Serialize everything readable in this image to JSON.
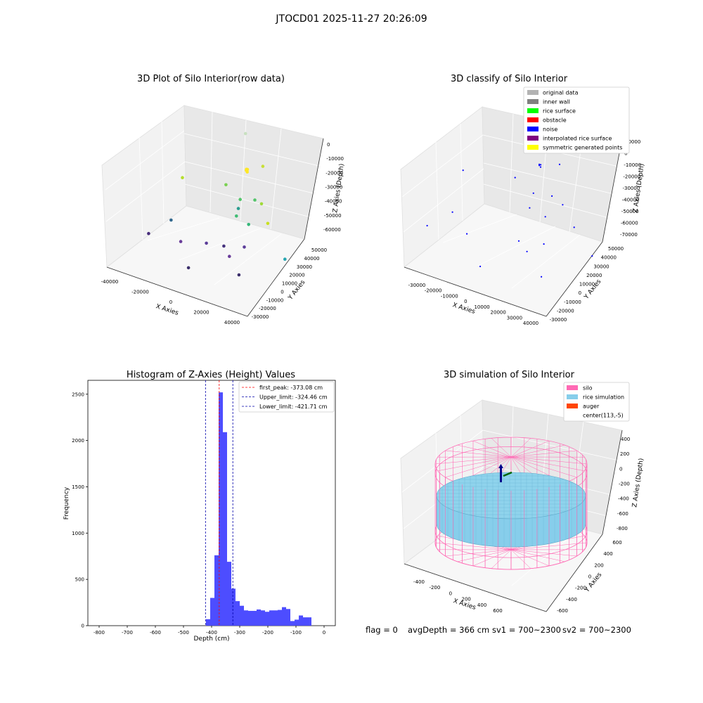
{
  "suptitle": "JTOCD01 2025-11-27 20:26:09",
  "chart_data": [
    {
      "type": "scatter",
      "title": "3D Plot of Silo Interior(row data)",
      "xlabel": "X Axies",
      "ylabel": "Y Axies",
      "zlabel": "Z Axies (Depth)",
      "xticks": [
        "-40000",
        "-20000",
        "0",
        "20000",
        "40000"
      ],
      "yticks": [
        "-30000",
        "-20000",
        "-10000",
        "0",
        "10000",
        "20000",
        "30000",
        "40000",
        "50000"
      ],
      "zticks": [
        "0",
        "-10000",
        "-20000",
        "-30000",
        "-40000",
        "-50000",
        "-60000"
      ],
      "points": [
        {
          "x": -5000,
          "y": 48000,
          "z": -1000,
          "color": "#c8e0c0"
        },
        {
          "x": 12000,
          "y": 40000,
          "z": -13000,
          "color": "#c8df37"
        },
        {
          "x": 2000,
          "y": 38000,
          "z": -18000,
          "color": "#fde725"
        },
        {
          "x": 2500,
          "y": 38500,
          "z": -17500,
          "color": "#fde725"
        },
        {
          "x": 3000,
          "y": 37500,
          "z": -18500,
          "color": "#fde725"
        },
        {
          "x": 1500,
          "y": 39000,
          "z": -18000,
          "color": "#fde725"
        },
        {
          "x": -30000,
          "y": 20000,
          "z": -25000,
          "color": "#b5de2b"
        },
        {
          "x": -8000,
          "y": 32000,
          "z": -28000,
          "color": "#7ad151"
        },
        {
          "x": 3000,
          "y": 30000,
          "z": -33000,
          "color": "#52c569"
        },
        {
          "x": 13000,
          "y": 30000,
          "z": -30000,
          "color": "#52c569"
        },
        {
          "x": 24000,
          "y": 20000,
          "z": -24000,
          "color": "#a0da39"
        },
        {
          "x": 38000,
          "y": 5000,
          "z": -25000,
          "color": "#c8e020"
        },
        {
          "x": 3000,
          "y": 26000,
          "z": -42000,
          "color": "#3fbc73"
        },
        {
          "x": 12000,
          "y": 25000,
          "z": -44000,
          "color": "#35b779"
        },
        {
          "x": 3000,
          "y": 28000,
          "z": -38000,
          "color": "#2a9d8f"
        },
        {
          "x": 40000,
          "y": 20000,
          "z": -55000,
          "color": "#26a5b0"
        },
        {
          "x": -28000,
          "y": 5000,
          "z": -45000,
          "color": "#31688e"
        },
        {
          "x": -35000,
          "y": -8000,
          "z": -50000,
          "color": "#472d7b"
        },
        {
          "x": -15000,
          "y": -5000,
          "z": -50000,
          "color": "#6a3d9a"
        },
        {
          "x": -2000,
          "y": 2000,
          "z": -50000,
          "color": "#5b3c99"
        },
        {
          "x": 8000,
          "y": 5000,
          "z": -50000,
          "color": "#46337e"
        },
        {
          "x": 15000,
          "y": 0,
          "z": -52000,
          "color": "#6a3d9a"
        },
        {
          "x": 20000,
          "y": 8000,
          "z": -48000,
          "color": "#5b3c99"
        },
        {
          "x": 28000,
          "y": -10000,
          "z": -55000,
          "color": "#3b2f6b"
        },
        {
          "x": 0,
          "y": -20000,
          "z": -55000,
          "color": "#3b2f6b"
        }
      ]
    },
    {
      "type": "scatter",
      "title": "3D classify of Silo Interior",
      "xlabel": "X Axies",
      "ylabel": "Y Axies",
      "zlabel": "Z Axies (Depth)",
      "xticks": [
        "-30000",
        "-20000",
        "-10000",
        "0",
        "10000",
        "20000",
        "30000",
        "40000"
      ],
      "yticks": [
        "-30000",
        "-20000",
        "-10000",
        "0",
        "10000",
        "20000",
        "30000",
        "40000",
        "50000"
      ],
      "zticks": [
        "10000",
        "0",
        "-10000",
        "-20000",
        "-30000",
        "-40000",
        "-50000",
        "-60000",
        "-70000"
      ],
      "legend_position": "top-right",
      "legend": [
        {
          "label": "original data",
          "color": "#b3b3b3"
        },
        {
          "label": "inner wall",
          "color": "#808080"
        },
        {
          "label": "rice surface",
          "color": "#00ff00"
        },
        {
          "label": "obstacle",
          "color": "#ff0000"
        },
        {
          "label": "noise",
          "color": "#0000ff"
        },
        {
          "label": "interpolated rice surface",
          "color": "#800080"
        },
        {
          "label": "symmetric generated points",
          "color": "#ffff00"
        }
      ],
      "points": [
        {
          "x": 2000,
          "y": 38000,
          "z": -10000,
          "color": "#0000ff"
        },
        {
          "x": 2500,
          "y": 38500,
          "z": -9500,
          "color": "#0000ff"
        },
        {
          "x": 3000,
          "y": 37500,
          "z": -10500,
          "color": "#0000ff"
        },
        {
          "x": 1500,
          "y": 39000,
          "z": -10000,
          "color": "#0000ff"
        },
        {
          "x": 12000,
          "y": 40000,
          "z": -5000,
          "color": "#0000ff"
        },
        {
          "x": -30000,
          "y": 20000,
          "z": -20000,
          "color": "#0000ff"
        },
        {
          "x": -8000,
          "y": 32000,
          "z": -22000,
          "color": "#0000ff"
        },
        {
          "x": 3000,
          "y": 30000,
          "z": -28000,
          "color": "#0000ff"
        },
        {
          "x": 13000,
          "y": 30000,
          "z": -25000,
          "color": "#0000ff"
        },
        {
          "x": 24000,
          "y": 20000,
          "z": -20000,
          "color": "#0000ff"
        },
        {
          "x": 38000,
          "y": 5000,
          "z": -22000,
          "color": "#0000ff"
        },
        {
          "x": 3000,
          "y": 26000,
          "z": -38000,
          "color": "#0000ff"
        },
        {
          "x": 12000,
          "y": 25000,
          "z": -40000,
          "color": "#0000ff"
        },
        {
          "x": 40000,
          "y": 20000,
          "z": -55000,
          "color": "#0000ff"
        },
        {
          "x": -28000,
          "y": 5000,
          "z": -45000,
          "color": "#0000ff"
        },
        {
          "x": -35000,
          "y": -8000,
          "z": -52000,
          "color": "#0000ff"
        },
        {
          "x": -15000,
          "y": -5000,
          "z": -50000,
          "color": "#0000ff"
        },
        {
          "x": 8000,
          "y": 5000,
          "z": -50000,
          "color": "#0000ff"
        },
        {
          "x": 15000,
          "y": 0,
          "z": -52000,
          "color": "#0000ff"
        },
        {
          "x": 20000,
          "y": 8000,
          "z": -48000,
          "color": "#0000ff"
        },
        {
          "x": 28000,
          "y": -10000,
          "z": -60000,
          "color": "#0000ff"
        },
        {
          "x": 0,
          "y": -20000,
          "z": -60000,
          "color": "#0000ff"
        }
      ]
    },
    {
      "type": "bar",
      "title": "Histogram of Z-Axies (Height) Values",
      "xlabel": "Depth (cm)",
      "ylabel": "Frequency",
      "xlim": [
        -840,
        40
      ],
      "ylim": [
        0,
        2650
      ],
      "xticks": [
        -800,
        -700,
        -600,
        -500,
        -400,
        -300,
        -200,
        -100,
        0
      ],
      "yticks": [
        0,
        500,
        1000,
        1500,
        2000,
        2500
      ],
      "bar_color": "#4d4dff",
      "bin_width": 15,
      "bins": [
        {
          "x0": -420,
          "value": 70
        },
        {
          "x0": -405,
          "value": 300
        },
        {
          "x0": -390,
          "value": 760
        },
        {
          "x0": -375,
          "value": 2520
        },
        {
          "x0": -360,
          "value": 2090
        },
        {
          "x0": -345,
          "value": 690
        },
        {
          "x0": -330,
          "value": 400
        },
        {
          "x0": -315,
          "value": 265
        },
        {
          "x0": -300,
          "value": 215
        },
        {
          "x0": -285,
          "value": 165
        },
        {
          "x0": -270,
          "value": 160
        },
        {
          "x0": -255,
          "value": 160
        },
        {
          "x0": -240,
          "value": 175
        },
        {
          "x0": -225,
          "value": 165
        },
        {
          "x0": -210,
          "value": 150
        },
        {
          "x0": -195,
          "value": 165
        },
        {
          "x0": -180,
          "value": 165
        },
        {
          "x0": -165,
          "value": 170
        },
        {
          "x0": -150,
          "value": 200
        },
        {
          "x0": -135,
          "value": 180
        },
        {
          "x0": -120,
          "value": 50
        },
        {
          "x0": -105,
          "value": 65
        },
        {
          "x0": -90,
          "value": 110
        },
        {
          "x0": -75,
          "value": 90
        },
        {
          "x0": -60,
          "value": 90
        }
      ],
      "vlines": [
        {
          "x": -373.08,
          "color": "#ff0000",
          "label": "first_peak: -373.08 cm"
        },
        {
          "x": -324.46,
          "color": "#0000aa",
          "label": "Upper_limit: -324.46 cm"
        },
        {
          "x": -421.71,
          "color": "#0000aa",
          "label": "Lower_limit: -421.71 cm"
        }
      ],
      "legend_position": "top-right"
    },
    {
      "type": "scatter",
      "title": "3D simulation of Silo Interior",
      "xlabel": "X Axies",
      "ylabel": "Y Axies",
      "zlabel": "Z Axies (Depth)",
      "xticks": [
        "-400",
        "-200",
        "0",
        "200",
        "400",
        "600"
      ],
      "yticks": [
        "-600",
        "-400",
        "-200",
        "0",
        "200",
        "400",
        "600"
      ],
      "zticks": [
        "400",
        "200",
        "0",
        "-200",
        "-400",
        "-600",
        "-800"
      ],
      "legend_position": "top-right",
      "legend": [
        {
          "label": "silo",
          "color": "#ff69b4"
        },
        {
          "label": "rice simulation",
          "color": "#87ceeb"
        },
        {
          "label": "auger",
          "color": "#ff4500"
        },
        {
          "label": "center(113,-5)",
          "color": ""
        }
      ]
    }
  ],
  "status": {
    "flag": "flag = 0",
    "avg_depth": "avgDepth = 366 cm",
    "sv1": "sv1 = 700~2300",
    "sv2": "sv2 = 700~2300"
  }
}
